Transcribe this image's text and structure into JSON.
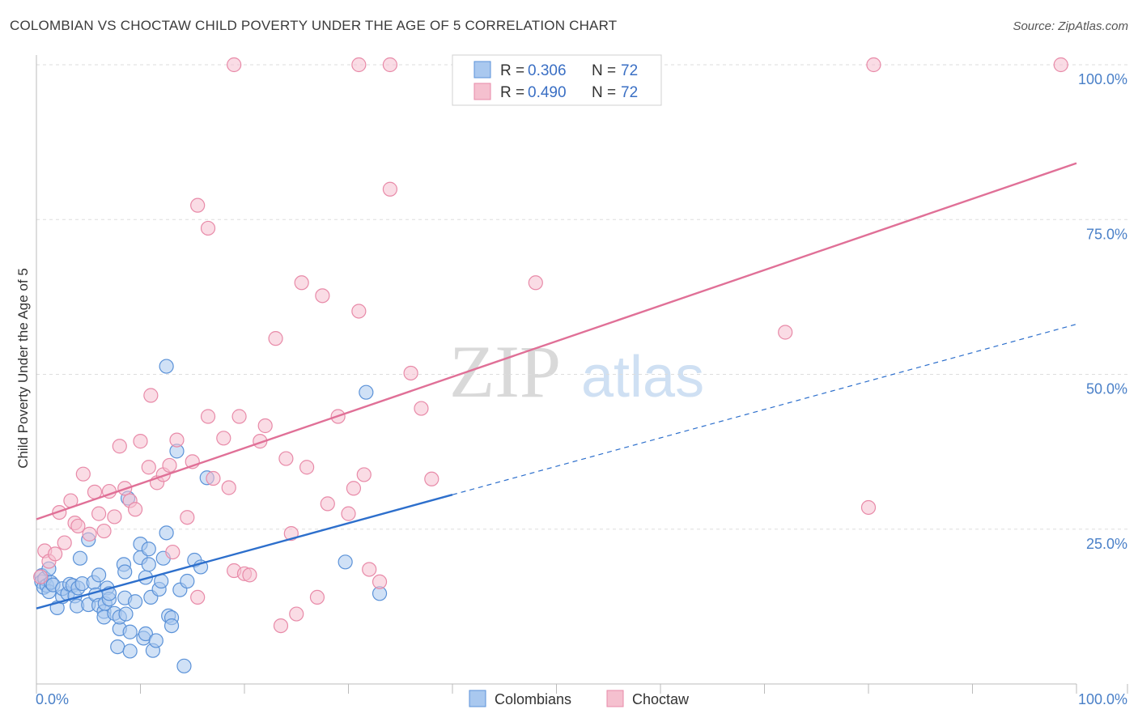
{
  "title": "COLOMBIAN VS CHOCTAW CHILD POVERTY UNDER THE AGE OF 5 CORRELATION CHART",
  "source": "Source: ZipAtlas.com",
  "watermark": "ZIPatlas",
  "colors": {
    "blue_fill": "#a9c8ef",
    "blue_stroke": "#5b92d8",
    "blue_line": "#2d6fcc",
    "pink_fill": "#f5c0cf",
    "pink_stroke": "#e88aa8",
    "pink_line": "#e07097",
    "grid": "#dddddd",
    "tick_text": "#4a80c8"
  },
  "legend": {
    "rows": [
      {
        "r_label": "R = ",
        "r_value": "0.306",
        "n_label": "N = ",
        "n_value": "72"
      },
      {
        "r_label": "R = ",
        "r_value": "0.490",
        "n_label": "N = ",
        "n_value": "72"
      }
    ]
  },
  "bottom_legend": [
    "Colombians",
    "Choctaw"
  ],
  "chart_data": {
    "type": "scatter",
    "xlabel": "",
    "ylabel": "Child Poverty Under the Age of 5",
    "xlim": [
      0,
      100
    ],
    "ylim": [
      0,
      100
    ],
    "x_tick_labels": [
      "0.0%",
      "100.0%"
    ],
    "y_tick_labels": [
      "25.0%",
      "50.0%",
      "75.0%",
      "100.0%"
    ],
    "y_ticks": [
      25,
      50,
      75,
      100
    ],
    "series": [
      {
        "name": "Colombians",
        "R": 0.306,
        "N": 72,
        "trend": {
          "x0": 0,
          "y0": 12.2,
          "x1": 100,
          "y1": 58.1,
          "solid_until_x": 40
        },
        "points": [
          [
            0.5,
            17.5
          ],
          [
            0.5,
            16.5
          ],
          [
            0.7,
            15.6
          ],
          [
            0.8,
            17.0
          ],
          [
            1,
            15.9
          ],
          [
            1.2,
            14.9
          ],
          [
            1.2,
            18.6
          ],
          [
            1.4,
            16.4
          ],
          [
            1.6,
            16.0
          ],
          [
            2,
            12.3
          ],
          [
            2.5,
            14.1
          ],
          [
            2.5,
            15.4
          ],
          [
            3,
            14.6
          ],
          [
            3.2,
            16.1
          ],
          [
            3.5,
            15.9
          ],
          [
            3.7,
            14.2
          ],
          [
            3.9,
            12.6
          ],
          [
            4,
            15.5
          ],
          [
            4.2,
            20.3
          ],
          [
            4.4,
            16.2
          ],
          [
            5,
            23.3
          ],
          [
            5,
            12.8
          ],
          [
            5.5,
            16.4
          ],
          [
            5.7,
            14.4
          ],
          [
            6,
            12.7
          ],
          [
            6,
            17.6
          ],
          [
            6.5,
            11.7
          ],
          [
            6.5,
            10.8
          ],
          [
            6.6,
            13.0
          ],
          [
            6.8,
            15.5
          ],
          [
            7,
            13.7
          ],
          [
            7,
            14.6
          ],
          [
            7.5,
            11.4
          ],
          [
            7.8,
            6.0
          ],
          [
            8,
            8.9
          ],
          [
            8,
            10.8
          ],
          [
            8.4,
            19.3
          ],
          [
            8.5,
            13.9
          ],
          [
            8.5,
            18.1
          ],
          [
            8.6,
            11.3
          ],
          [
            8.8,
            30.0
          ],
          [
            9,
            8.4
          ],
          [
            9,
            5.3
          ],
          [
            9.5,
            13.3
          ],
          [
            10,
            20.4
          ],
          [
            10,
            22.6
          ],
          [
            10.3,
            7.4
          ],
          [
            10.5,
            8.1
          ],
          [
            10.5,
            17.2
          ],
          [
            10.8,
            19.3
          ],
          [
            10.8,
            21.8
          ],
          [
            11,
            14.0
          ],
          [
            11.2,
            5.4
          ],
          [
            11.5,
            7.0
          ],
          [
            11.8,
            15.3
          ],
          [
            12,
            16.6
          ],
          [
            12.2,
            20.3
          ],
          [
            12.5,
            24.4
          ],
          [
            12.7,
            11.0
          ],
          [
            13,
            10.7
          ],
          [
            13,
            9.4
          ],
          [
            13.5,
            37.6
          ],
          [
            13.8,
            15.2
          ],
          [
            14.2,
            2.9
          ],
          [
            14.5,
            16.6
          ],
          [
            15.2,
            20.0
          ],
          [
            15.8,
            18.9
          ],
          [
            16.4,
            33.3
          ],
          [
            12.5,
            51.3
          ],
          [
            31.7,
            47.1
          ],
          [
            33,
            14.6
          ],
          [
            29.7,
            19.7
          ]
        ]
      },
      {
        "name": "Choctaw",
        "R": 0.49,
        "N": 72,
        "trend": {
          "x0": 0,
          "y0": 26.6,
          "x1": 100,
          "y1": 84.1
        },
        "points": [
          [
            0.4,
            17.3
          ],
          [
            0.8,
            21.5
          ],
          [
            1.2,
            19.8
          ],
          [
            1.8,
            21.0
          ],
          [
            2.2,
            27.7
          ],
          [
            2.7,
            22.8
          ],
          [
            3.3,
            29.6
          ],
          [
            3.7,
            26.0
          ],
          [
            4,
            25.5
          ],
          [
            4.5,
            33.9
          ],
          [
            5.1,
            24.2
          ],
          [
            5.6,
            31.0
          ],
          [
            6,
            27.5
          ],
          [
            6.5,
            24.7
          ],
          [
            7,
            31.1
          ],
          [
            7.5,
            27.0
          ],
          [
            8,
            38.4
          ],
          [
            8.5,
            31.6
          ],
          [
            9,
            29.6
          ],
          [
            9.5,
            28.2
          ],
          [
            10,
            39.2
          ],
          [
            10.8,
            35.0
          ],
          [
            11,
            46.6
          ],
          [
            11.6,
            32.5
          ],
          [
            12.2,
            33.8
          ],
          [
            12.8,
            35.3
          ],
          [
            13.1,
            21.3
          ],
          [
            13.5,
            39.4
          ],
          [
            14.5,
            26.9
          ],
          [
            15,
            35.9
          ],
          [
            15.5,
            14.0
          ],
          [
            16.5,
            43.2
          ],
          [
            17,
            33.2
          ],
          [
            18,
            39.7
          ],
          [
            18.5,
            31.7
          ],
          [
            19,
            18.3
          ],
          [
            19.5,
            43.2
          ],
          [
            20,
            17.8
          ],
          [
            20.5,
            17.6
          ],
          [
            21.5,
            39.2
          ],
          [
            22,
            41.7
          ],
          [
            23,
            55.8
          ],
          [
            23.5,
            9.4
          ],
          [
            24,
            36.4
          ],
          [
            24.5,
            24.3
          ],
          [
            25,
            11.3
          ],
          [
            25.5,
            64.8
          ],
          [
            26,
            35.0
          ],
          [
            27,
            14.0
          ],
          [
            27.5,
            62.7
          ],
          [
            28,
            29.1
          ],
          [
            29,
            43.2
          ],
          [
            30,
            27.5
          ],
          [
            30.5,
            31.6
          ],
          [
            31,
            60.2
          ],
          [
            31.5,
            33.8
          ],
          [
            32,
            18.5
          ],
          [
            33,
            16.5
          ],
          [
            34,
            79.9
          ],
          [
            36,
            50.2
          ],
          [
            37,
            44.5
          ],
          [
            38,
            33.1
          ],
          [
            48,
            64.8
          ],
          [
            72,
            56.8
          ],
          [
            80,
            28.5
          ],
          [
            15.5,
            77.3
          ],
          [
            16.5,
            73.6
          ],
          [
            19,
            100
          ],
          [
            31,
            100
          ],
          [
            34,
            100
          ],
          [
            80.5,
            100
          ],
          [
            98.5,
            100
          ]
        ]
      }
    ]
  }
}
